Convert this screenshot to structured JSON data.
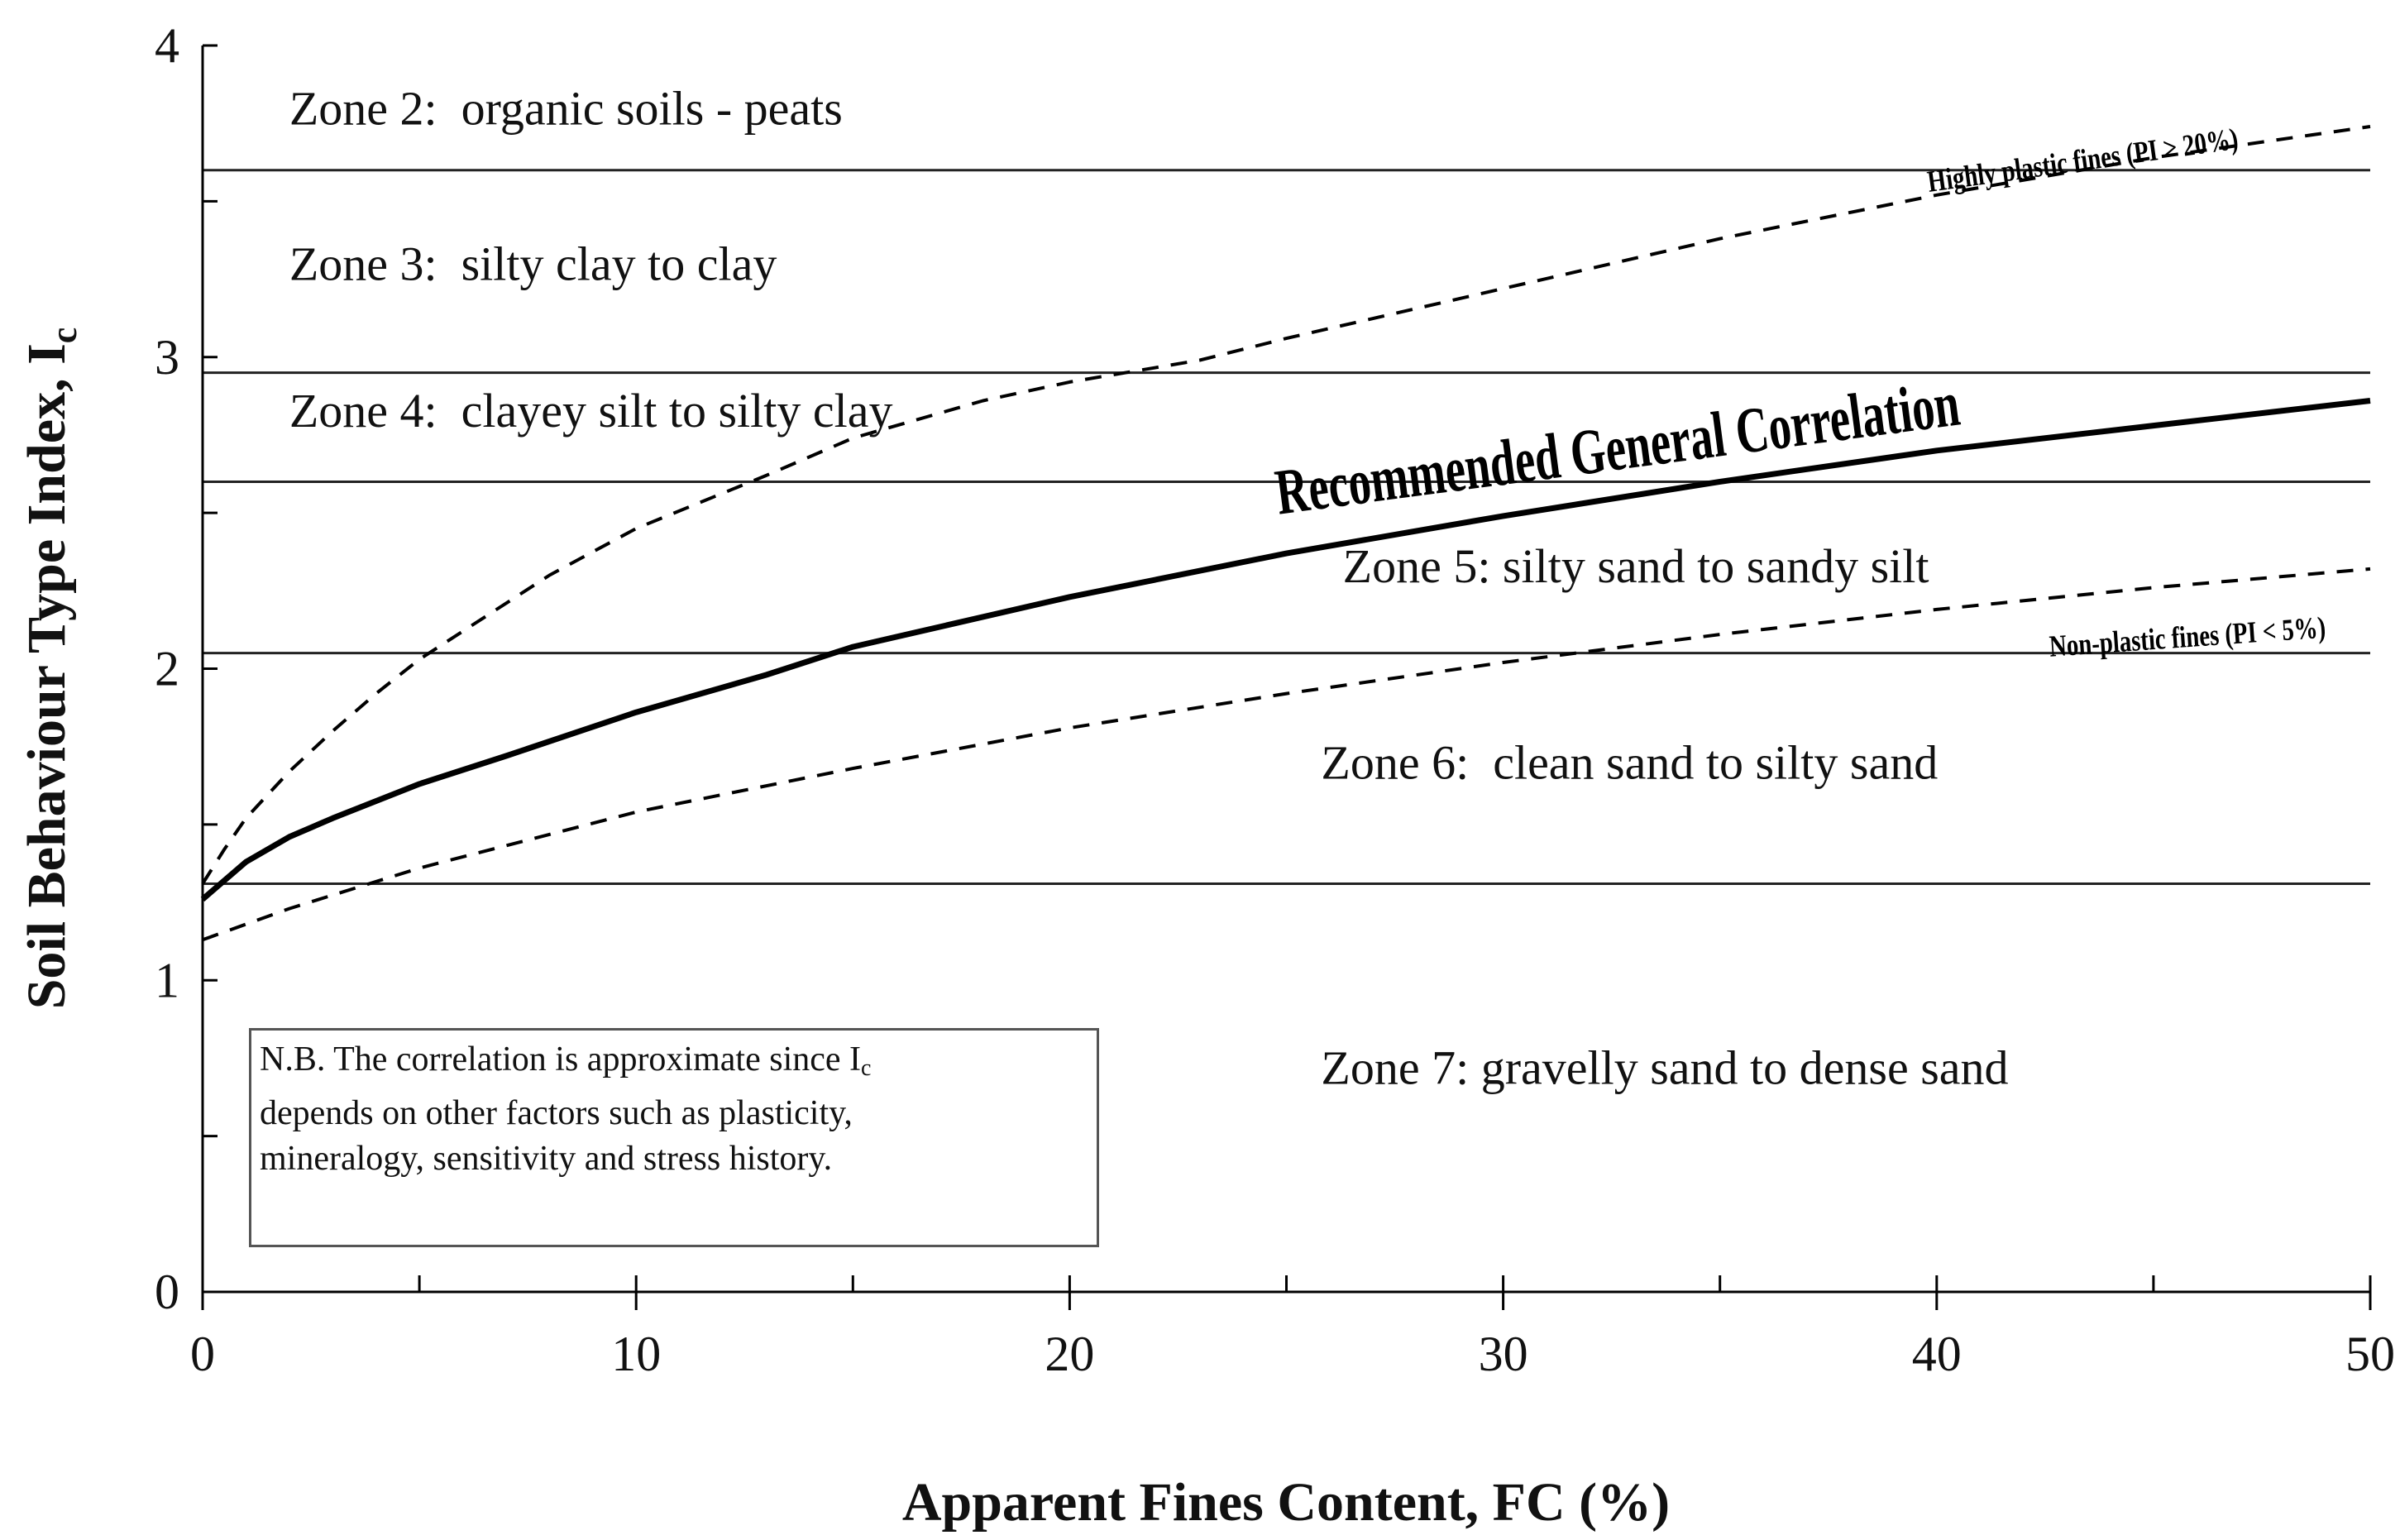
{
  "chart_data": {
    "type": "line",
    "xlabel": "Apparent Fines Content, FC (%)",
    "ylabel": "Soil Behaviour Type Index, I",
    "ylabel_sub": "c",
    "xlim": [
      0,
      50
    ],
    "ylim": [
      0,
      4
    ],
    "x_ticks": [
      "0",
      "10",
      "20",
      "30",
      "40",
      "50"
    ],
    "y_ticks": [
      "0",
      "1",
      "2",
      "3",
      "4"
    ],
    "grid": false,
    "zone_boundaries": [
      1.31,
      2.05,
      2.6,
      2.95,
      3.6
    ],
    "zones": [
      {
        "label": "Zone 2:  organic soils - peats",
        "x": 2,
        "y": 3.8
      },
      {
        "label": "Zone 3:  silty clay to clay",
        "x": 2,
        "y": 3.3
      },
      {
        "label": "Zone 4:  clayey silt to silty clay",
        "x": 2,
        "y": 2.83
      },
      {
        "label": "Zone 5: silty sand to sandy silt",
        "x": 26.3,
        "y": 2.33
      },
      {
        "label": "Zone 6:  clean sand to silty sand",
        "x": 25.8,
        "y": 1.7
      },
      {
        "label": "Zone 7: gravelly sand to dense sand",
        "x": 25.8,
        "y": 0.72
      }
    ],
    "series": [
      {
        "name": "Recommended General Correlation",
        "style": "solid-thick",
        "x": [
          0,
          1,
          2,
          3,
          5,
          7,
          10,
          13,
          15,
          20,
          25,
          30,
          35,
          40,
          45,
          50
        ],
        "y": [
          1.26,
          1.38,
          1.46,
          1.52,
          1.63,
          1.72,
          1.86,
          1.98,
          2.07,
          2.23,
          2.37,
          2.49,
          2.6,
          2.7,
          2.78,
          2.86
        ]
      },
      {
        "name": "Highly plastic fines (PI > 20%)",
        "style": "dashed",
        "x": [
          0,
          0.5,
          1,
          2,
          3,
          4,
          5,
          6,
          8,
          10,
          13,
          15,
          18,
          20,
          23,
          25,
          30,
          35,
          40,
          45,
          50
        ],
        "y": [
          1.31,
          1.42,
          1.52,
          1.67,
          1.8,
          1.92,
          2.03,
          2.12,
          2.3,
          2.45,
          2.62,
          2.74,
          2.86,
          2.92,
          2.99,
          3.06,
          3.22,
          3.38,
          3.52,
          3.64,
          3.74
        ]
      },
      {
        "name": "Non-plastic fines (PI < 5%)",
        "style": "dashed",
        "x": [
          0,
          2,
          5,
          10,
          15,
          20,
          25,
          30,
          35,
          40,
          45,
          50
        ],
        "y": [
          1.13,
          1.23,
          1.36,
          1.54,
          1.68,
          1.81,
          1.92,
          2.02,
          2.11,
          2.19,
          2.26,
          2.32
        ]
      }
    ],
    "series_labels": [
      {
        "text": "Recommended General Correlation",
        "x": 32.7,
        "y": 2.64,
        "angle": -7.5,
        "style": "bold-large"
      },
      {
        "text": "Highly plastic fines (PI > 20%)",
        "x": 43.4,
        "y": 3.6,
        "angle": -8,
        "style": "bold-small"
      },
      {
        "text": "Non-plastic fines (PI < 5%)",
        "x": 45.8,
        "y": 2.07,
        "angle": -4,
        "style": "bold-small"
      }
    ],
    "note": [
      "N.B.  The correlation is approximate since I",
      "depends on other factors such as plasticity,",
      "mineralogy, sensitivity and stress history."
    ],
    "note_sub": "c"
  }
}
